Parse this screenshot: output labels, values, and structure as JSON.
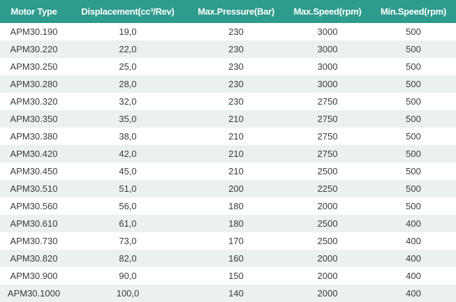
{
  "table": {
    "headers": [
      "Motor Type",
      "Displacement(cc³/Rev)",
      "Max.Pressure(Bar)",
      "Max.Speed(rpm)",
      "Min.Speed(rpm)"
    ],
    "rows": [
      [
        "APM30.190",
        "19,0",
        "230",
        "3000",
        "500"
      ],
      [
        "APM30.220",
        "22,0",
        "230",
        "3000",
        "500"
      ],
      [
        "APM30.250",
        "25,0",
        "230",
        "3000",
        "500"
      ],
      [
        "APM30.280",
        "28,0",
        "230",
        "3000",
        "500"
      ],
      [
        "APM30.320",
        "32,0",
        "230",
        "2750",
        "500"
      ],
      [
        "APM30.350",
        "35,0",
        "210",
        "2750",
        "500"
      ],
      [
        "APM30.380",
        "38,0",
        "210",
        "2750",
        "500"
      ],
      [
        "APM30.420",
        "42,0",
        "210",
        "2750",
        "500"
      ],
      [
        "APM30.450",
        "45,0",
        "210",
        "2500",
        "500"
      ],
      [
        "APM30.510",
        "51,0",
        "200",
        "2250",
        "500"
      ],
      [
        "APM30.560",
        "56,0",
        "180",
        "2000",
        "500"
      ],
      [
        "APM30.610",
        "61,0",
        "180",
        "2500",
        "400"
      ],
      [
        "APM30.730",
        "73,0",
        "170",
        "2500",
        "400"
      ],
      [
        "APM30.820",
        "82,0",
        "160",
        "2000",
        "400"
      ],
      [
        "APM30.900",
        "90,0",
        "150",
        "2000",
        "400"
      ],
      [
        "APM30.1000",
        "100,0",
        "140",
        "2000",
        "400"
      ]
    ]
  },
  "colors": {
    "header_bg": "#2e9b8d",
    "header_text": "#ffffff",
    "stripe_bg": "#eaf1ef",
    "cell_text": "#3b3b3b"
  }
}
